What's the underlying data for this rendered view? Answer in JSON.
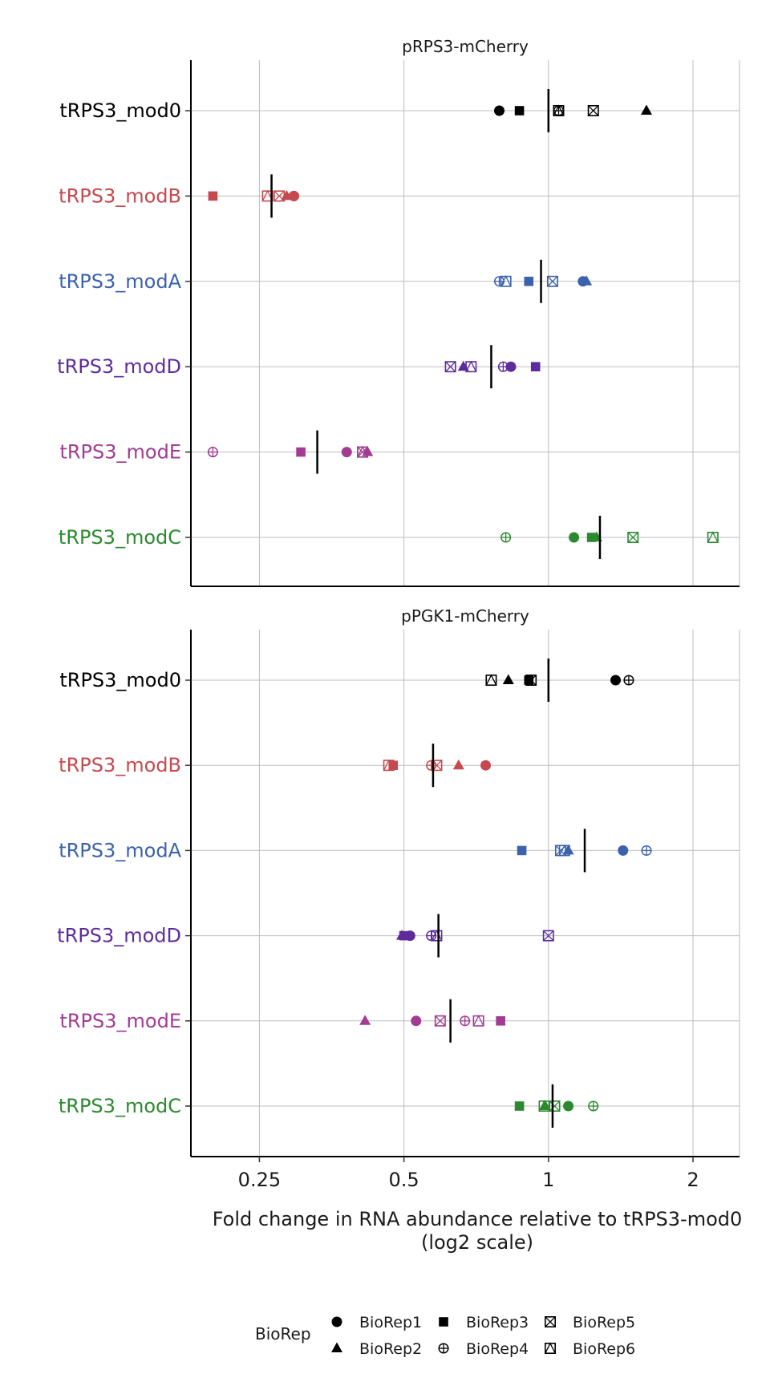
{
  "chart_data": {
    "type": "scatter",
    "x_scale": "log2",
    "xlabel": [
      "Fold change in RNA abundance relative to tRPS3-mod0",
      "(log2 scale)"
    ],
    "x_ticks": [
      {
        "value": 0.25,
        "label": "0.25"
      },
      {
        "value": 0.5,
        "label": "0.5"
      },
      {
        "value": 1,
        "label": "1"
      },
      {
        "value": 2,
        "label": "2"
      }
    ],
    "xlim": [
      0.18,
      2.5
    ],
    "grid": true,
    "categories": [
      {
        "label": "tRPS3_mod0",
        "color": "#000000"
      },
      {
        "label": "tRPS3_modB",
        "color": "#c5494f"
      },
      {
        "label": "tRPS3_modA",
        "color": "#3b62ad"
      },
      {
        "label": "tRPS3_modD",
        "color": "#5e2b9c"
      },
      {
        "label": "tRPS3_modE",
        "color": "#a13c92"
      },
      {
        "label": "tRPS3_modC",
        "color": "#2b8a2e"
      }
    ],
    "legend": {
      "title": "BioRep",
      "position": "bottom",
      "entries": [
        {
          "name": "BioRep1",
          "shape": "circle"
        },
        {
          "name": "BioRep2",
          "shape": "triangle"
        },
        {
          "name": "BioRep3",
          "shape": "square"
        },
        {
          "name": "BioRep4",
          "shape": "circle-plus"
        },
        {
          "name": "BioRep5",
          "shape": "square-cross"
        },
        {
          "name": "BioRep6",
          "shape": "square-triangle"
        }
      ]
    },
    "panels": [
      {
        "title": "pRPS3-mCherry",
        "rows": [
          {
            "mean": 1.0,
            "values": {
              "BioRep1": 0.79,
              "BioRep2": 1.6,
              "BioRep3": 0.87,
              "BioRep4": 1.05,
              "BioRep5": 1.24,
              "BioRep6": 1.05
            }
          },
          {
            "mean": 0.265,
            "values": {
              "BioRep1": 0.295,
              "BioRep2": 0.285,
              "BioRep3": 0.2,
              "BioRep4": 0.295,
              "BioRep5": 0.275,
              "BioRep6": 0.26
            }
          },
          {
            "mean": 0.965,
            "values": {
              "BioRep1": 1.18,
              "BioRep2": 1.2,
              "BioRep3": 0.91,
              "BioRep4": 0.79,
              "BioRep5": 1.02,
              "BioRep6": 0.815
            }
          },
          {
            "mean": 0.76,
            "values": {
              "BioRep1": 0.835,
              "BioRep2": 0.665,
              "BioRep3": 0.94,
              "BioRep4": 0.805,
              "BioRep5": 0.625,
              "BioRep6": 0.69
            }
          },
          {
            "mean": 0.33,
            "values": {
              "BioRep1": 0.38,
              "BioRep2": 0.42,
              "BioRep3": 0.305,
              "BioRep4": 0.2,
              "BioRep5": 0.41,
              "BioRep6": 0.41
            }
          },
          {
            "mean": 1.28,
            "values": {
              "BioRep1": 1.13,
              "BioRep2": 1.26,
              "BioRep3": 1.23,
              "BioRep4": 0.815,
              "BioRep5": 1.5,
              "BioRep6": 2.2
            }
          }
        ]
      },
      {
        "title": "pPGK1-mCherry",
        "rows": [
          {
            "mean": 1.0,
            "values": {
              "BioRep1": 1.38,
              "BioRep2": 0.825,
              "BioRep3": 0.91,
              "BioRep4": 1.47,
              "BioRep5": 0.92,
              "BioRep6": 0.76
            }
          },
          {
            "mean": 0.575,
            "values": {
              "BioRep1": 0.74,
              "BioRep2": 0.65,
              "BioRep3": 0.475,
              "BioRep4": 0.57,
              "BioRep5": 0.585,
              "BioRep6": 0.465
            }
          },
          {
            "mean": 1.19,
            "values": {
              "BioRep1": 1.43,
              "BioRep2": 1.1,
              "BioRep3": 0.88,
              "BioRep4": 1.6,
              "BioRep5": 1.06,
              "BioRep6": 1.08
            }
          },
          {
            "mean": 0.59,
            "values": {
              "BioRep1": 0.515,
              "BioRep2": 0.495,
              "BioRep3": 0.5,
              "BioRep4": 0.57,
              "BioRep5": 1.0,
              "BioRep6": 0.585
            }
          },
          {
            "mean": 0.625,
            "values": {
              "BioRep1": 0.53,
              "BioRep2": 0.415,
              "BioRep3": 0.795,
              "BioRep4": 0.67,
              "BioRep5": 0.595,
              "BioRep6": 0.715
            }
          },
          {
            "mean": 1.02,
            "values": {
              "BioRep1": 1.1,
              "BioRep2": 0.985,
              "BioRep3": 0.87,
              "BioRep4": 1.24,
              "BioRep5": 1.03,
              "BioRep6": 0.98
            }
          }
        ]
      }
    ]
  }
}
